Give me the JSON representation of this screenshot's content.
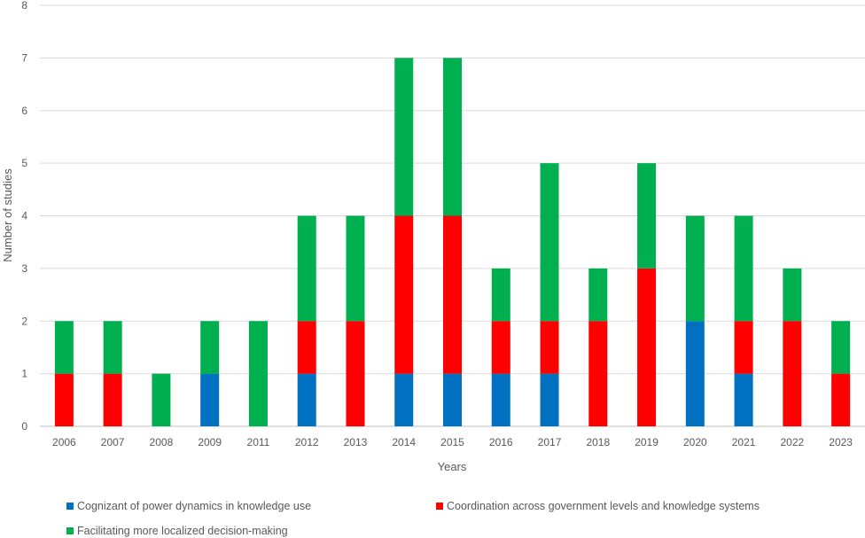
{
  "chart_data": {
    "type": "bar",
    "stacked": true,
    "categories": [
      "2006",
      "2007",
      "2008",
      "2009",
      "2011",
      "2012",
      "2013",
      "2014",
      "2015",
      "2016",
      "2017",
      "2018",
      "2019",
      "2020",
      "2021",
      "2022",
      "2023"
    ],
    "series": [
      {
        "name": "Cognizant of power dynamics in knowledge use",
        "color": "#0070C0",
        "values": [
          0,
          0,
          0,
          1,
          0,
          1,
          0,
          1,
          1,
          1,
          1,
          0,
          0,
          2,
          1,
          0,
          0
        ]
      },
      {
        "name": "Coordination across government levels and knowledge systems",
        "color": "#FF0000",
        "values": [
          1,
          1,
          0,
          0,
          0,
          1,
          2,
          3,
          3,
          1,
          1,
          2,
          3,
          0,
          1,
          2,
          1
        ]
      },
      {
        "name": "Facilitating more localized decision-making",
        "color": "#00B050",
        "values": [
          1,
          1,
          1,
          1,
          2,
          2,
          2,
          3,
          3,
          1,
          3,
          1,
          2,
          2,
          2,
          1,
          1
        ]
      }
    ],
    "title": "",
    "xlabel": "Years",
    "ylabel": "Number of studies",
    "ylim": [
      0,
      8
    ],
    "yticks": [
      0,
      1,
      2,
      3,
      4,
      5,
      6,
      7,
      8
    ],
    "grid": true,
    "legend_position": "bottom"
  }
}
